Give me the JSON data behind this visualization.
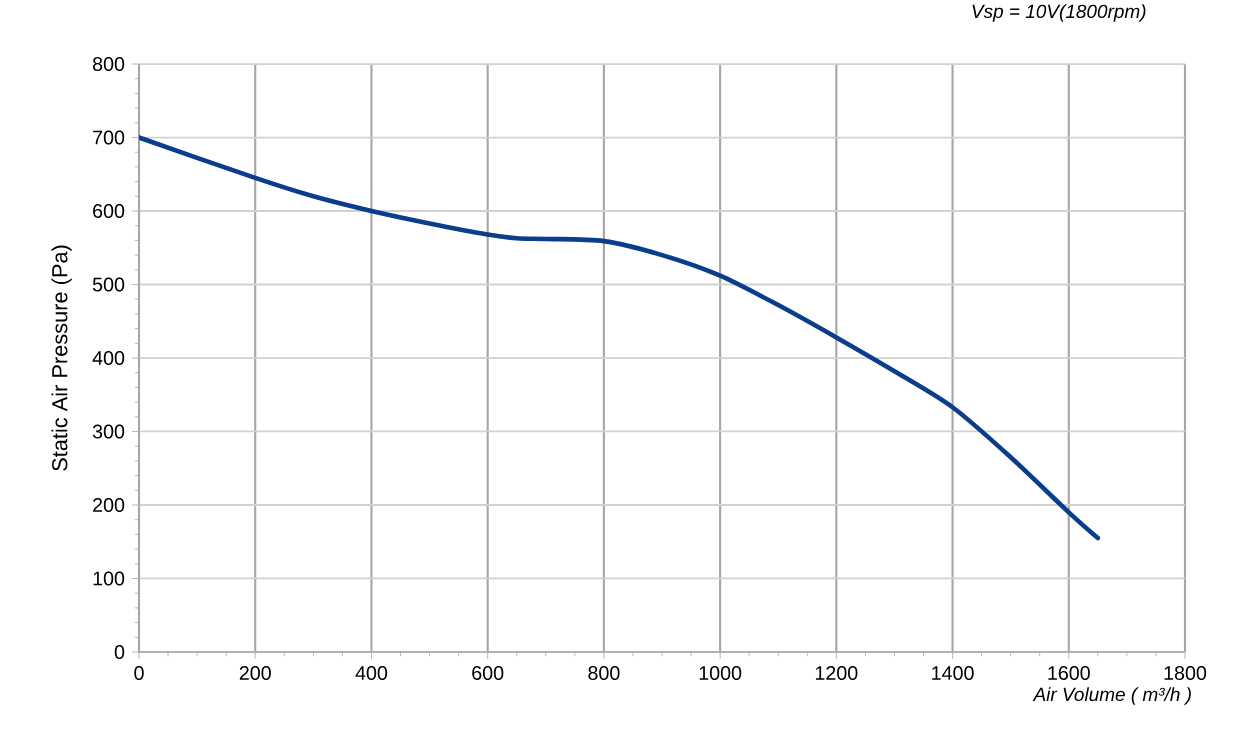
{
  "chart_data": {
    "type": "line",
    "title": "*Vsp = 10V(1800rpm)*",
    "xlabel": "*Air Volume ( m³/h )*",
    "ylabel": "Static Air Pressure  (Pa)",
    "x": [
      0,
      200,
      300,
      400,
      500,
      600,
      650,
      700,
      800,
      900,
      1000,
      1100,
      1200,
      1300,
      1400,
      1500,
      1600,
      1650
    ],
    "values": [
      700,
      645,
      620,
      600,
      583,
      568,
      563,
      562,
      559,
      540,
      512,
      472,
      428,
      382,
      333,
      265,
      190,
      155
    ],
    "color": "#0a3d8c",
    "xlim": [
      0,
      1800
    ],
    "xticks": [
      0,
      200,
      400,
      600,
      800,
      1000,
      1200,
      1400,
      1600,
      1800
    ],
    "ylim": [
      0,
      800
    ],
    "yticks": [
      0,
      100,
      200,
      300,
      400,
      500,
      600,
      700,
      800
    ],
    "grid": true,
    "marker": "none",
    "line_style": "solid"
  }
}
